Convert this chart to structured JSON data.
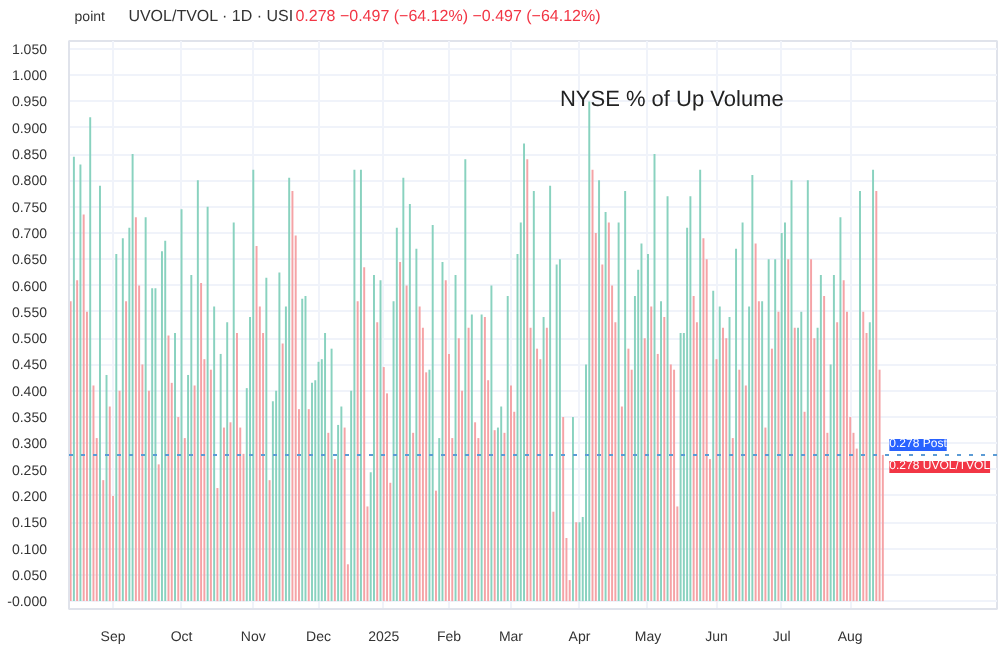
{
  "chart_data": {
    "type": "bar",
    "title": "NYSE % of Up Volume",
    "subtitle": "UVOL/TVOL · 1D · USI",
    "ylabel": "point",
    "annotations": [
      "0.278 −0.497 (−64.12%) −0.497 (−64.12%)",
      {
        "text": "0.278 Post",
        "y": 0.278
      },
      {
        "text": "0.278 UVOL/TVOL",
        "y": 0.278
      }
    ],
    "categories": [
      null,
      null,
      null,
      null,
      null,
      null,
      null,
      null,
      null,
      null,
      null,
      null,
      null,
      "Sep",
      null,
      null,
      null,
      null,
      null,
      null,
      null,
      null,
      null,
      null,
      null,
      null,
      null,
      null,
      null,
      null,
      null,
      null,
      null,
      null,
      "Oct",
      null,
      null,
      null,
      null,
      null,
      null,
      null,
      null,
      null,
      null,
      null,
      null,
      null,
      null,
      null,
      null,
      null,
      null,
      null,
      null,
      null,
      "Nov",
      null,
      null,
      null,
      null,
      null,
      null,
      null,
      null,
      null,
      null,
      null,
      null,
      null,
      null,
      null,
      null,
      null,
      null,
      null,
      "Dec",
      null,
      null,
      null,
      null,
      null,
      null,
      null,
      null,
      null,
      null,
      null,
      null,
      null,
      null,
      null,
      null,
      null,
      null,
      null,
      "2025",
      null,
      null,
      null,
      null,
      null,
      null,
      null,
      null,
      null,
      null,
      null,
      null,
      null,
      null,
      null,
      null,
      null,
      null,
      null,
      "Feb",
      null,
      null,
      null,
      null,
      null,
      null,
      null,
      null,
      null,
      null,
      null,
      null,
      null,
      null,
      null,
      null,
      null,
      null,
      "Mar",
      null,
      null,
      null,
      null,
      null,
      null,
      null,
      null,
      null,
      null,
      null,
      null,
      null,
      null,
      null,
      null,
      null,
      null,
      null,
      null,
      "Apr",
      null,
      null,
      null,
      null,
      null,
      null,
      null,
      null,
      null,
      null,
      null,
      null,
      null,
      null,
      null,
      null,
      null,
      null,
      null,
      null,
      "May",
      null,
      null,
      null,
      null,
      null,
      null,
      null,
      null,
      null,
      null,
      null,
      null,
      null,
      null,
      null,
      null,
      null,
      null,
      null,
      null,
      "Jun",
      null,
      null,
      null,
      null,
      null,
      null,
      null,
      null,
      null,
      null,
      null,
      null,
      null,
      null,
      null,
      null,
      null,
      null,
      null,
      "Jul",
      null,
      null,
      null,
      null,
      null,
      null,
      null,
      null,
      null,
      null,
      null,
      null,
      null,
      null,
      null,
      null,
      null,
      null,
      null,
      null,
      "Aug",
      null,
      null,
      null,
      null,
      null,
      null,
      null,
      null,
      null,
      null
    ],
    "values": [
      0.57,
      0.845,
      0.61,
      0.83,
      0.735,
      0.55,
      0.92,
      0.41,
      0.31,
      0.79,
      0.23,
      0.43,
      0.37,
      0.2,
      0.66,
      0.4,
      0.69,
      0.57,
      0.71,
      0.85,
      0.73,
      0.6,
      0.45,
      0.73,
      0.4,
      0.595,
      0.595,
      0.26,
      0.665,
      0.685,
      0.505,
      0.415,
      0.51,
      0.35,
      0.745,
      0.31,
      0.43,
      0.62,
      0.41,
      0.8,
      0.605,
      0.46,
      0.75,
      0.44,
      0.56,
      0.215,
      0.47,
      0.33,
      0.53,
      0.34,
      0.72,
      0.51,
      0.33,
      0.28,
      0.405,
      0.54,
      0.82,
      0.675,
      0.56,
      0.51,
      0.615,
      0.23,
      0.38,
      0.4,
      0.625,
      0.49,
      0.56,
      0.805,
      0.78,
      0.695,
      0.365,
      0.575,
      0.58,
      0.365,
      0.415,
      0.42,
      0.455,
      0.46,
      0.51,
      0.32,
      0.48,
      0.27,
      0.335,
      0.37,
      0.33,
      0.07,
      0.4,
      0.82,
      0.57,
      0.82,
      0.635,
      0.18,
      0.245,
      0.62,
      0.53,
      0.61,
      0.445,
      0.395,
      0.225,
      0.57,
      0.71,
      0.645,
      0.805,
      0.6,
      0.755,
      0.32,
      0.67,
      0.56,
      0.52,
      0.435,
      0.44,
      0.715,
      0.21,
      0.31,
      0.645,
      0.61,
      0.47,
      0.31,
      0.62,
      0.5,
      0.4,
      0.84,
      0.52,
      0.545,
      0.34,
      0.31,
      0.545,
      0.54,
      0.42,
      0.6,
      0.325,
      0.33,
      0.37,
      0.32,
      0.58,
      0.41,
      0.36,
      0.66,
      0.72,
      0.87,
      0.84,
      0.52,
      0.78,
      0.48,
      0.46,
      0.54,
      0.52,
      0.79,
      0.17,
      0.64,
      0.65,
      0.35,
      0.12,
      0.04,
      0.35,
      0.15,
      0.15,
      0.16,
      0.45,
      0.95,
      0.82,
      0.7,
      0.8,
      0.64,
      0.74,
      0.72,
      0.6,
      0.53,
      0.72,
      0.37,
      0.78,
      0.48,
      0.44,
      0.58,
      0.63,
      0.68,
      0.5,
      0.66,
      0.56,
      0.85,
      0.47,
      0.57,
      0.54,
      0.77,
      0.45,
      0.44,
      0.18,
      0.51,
      0.51,
      0.71,
      0.77,
      0.58,
      0.53,
      0.82,
      0.69,
      0.65,
      0.27,
      0.59,
      0.46,
      0.56,
      0.52,
      0.5,
      0.54,
      0.31,
      0.67,
      0.44,
      0.72,
      0.41,
      0.56,
      0.81,
      0.68,
      0.57,
      0.57,
      0.33,
      0.65,
      0.48,
      0.65,
      0.55,
      0.7,
      0.72,
      0.65,
      0.8,
      0.52,
      0.52,
      0.55,
      0.36,
      0.8,
      0.65,
      0.5,
      0.52,
      0.62,
      0.58,
      0.32,
      0.45,
      0.62,
      0.53,
      0.73,
      0.61,
      0.55,
      0.35,
      0.32,
      0.29,
      0.78,
      0.55,
      0.51,
      0.53,
      0.82,
      0.78,
      0.44,
      0.278
    ],
    "colors": [
      "#f5a3a6",
      "#89d2bf",
      "#f5a3a6",
      "#89d2bf",
      "#f5a3a6",
      "#f5a3a6",
      "#89d2bf",
      "#f5a3a6",
      "#f5a3a6",
      "#89d2bf",
      "#f5a3a6",
      "#89d2bf",
      "#f5a3a6",
      "#f5a3a6",
      "#89d2bf",
      "#f5a3a6",
      "#89d2bf",
      "#f5a3a6",
      "#89d2bf",
      "#89d2bf",
      "#f5a3a6",
      "#f5a3a6",
      "#f5a3a6",
      "#89d2bf",
      "#f5a3a6",
      "#89d2bf",
      "#89d2bf",
      "#f5a3a6",
      "#89d2bf",
      "#89d2bf",
      "#f5a3a6",
      "#f5a3a6",
      "#89d2bf",
      "#f5a3a6",
      "#89d2bf",
      "#f5a3a6",
      "#89d2bf",
      "#89d2bf",
      "#f5a3a6",
      "#89d2bf",
      "#f5a3a6",
      "#f5a3a6",
      "#89d2bf",
      "#f5a3a6",
      "#89d2bf",
      "#f5a3a6",
      "#89d2bf",
      "#f5a3a6",
      "#89d2bf",
      "#f5a3a6",
      "#89d2bf",
      "#f5a3a6",
      "#f5a3a6",
      "#f5a3a6",
      "#89d2bf",
      "#89d2bf",
      "#89d2bf",
      "#f5a3a6",
      "#f5a3a6",
      "#f5a3a6",
      "#89d2bf",
      "#f5a3a6",
      "#89d2bf",
      "#89d2bf",
      "#89d2bf",
      "#f5a3a6",
      "#89d2bf",
      "#89d2bf",
      "#f5a3a6",
      "#f5a3a6",
      "#f5a3a6",
      "#89d2bf",
      "#89d2bf",
      "#f5a3a6",
      "#89d2bf",
      "#89d2bf",
      "#89d2bf",
      "#89d2bf",
      "#89d2bf",
      "#f5a3a6",
      "#89d2bf",
      "#f5a3a6",
      "#89d2bf",
      "#89d2bf",
      "#f5a3a6",
      "#f5a3a6",
      "#89d2bf",
      "#89d2bf",
      "#f5a3a6",
      "#89d2bf",
      "#f5a3a6",
      "#f5a3a6",
      "#89d2bf",
      "#89d2bf",
      "#f5a3a6",
      "#89d2bf",
      "#f5a3a6",
      "#f5a3a6",
      "#f5a3a6",
      "#89d2bf",
      "#89d2bf",
      "#f5a3a6",
      "#89d2bf",
      "#f5a3a6",
      "#89d2bf",
      "#f5a3a6",
      "#89d2bf",
      "#f5a3a6",
      "#f5a3a6",
      "#f5a3a6",
      "#89d2bf",
      "#89d2bf",
      "#f5a3a6",
      "#89d2bf",
      "#89d2bf",
      "#f5a3a6",
      "#f5a3a6",
      "#f5a3a6",
      "#89d2bf",
      "#f5a3a6",
      "#f5a3a6",
      "#89d2bf",
      "#f5a3a6",
      "#89d2bf",
      "#f5a3a6",
      "#f5a3a6",
      "#89d2bf",
      "#f5a3a6",
      "#f5a3a6",
      "#89d2bf",
      "#f5a3a6",
      "#89d2bf",
      "#89d2bf",
      "#f5a3a6",
      "#89d2bf",
      "#f5a3a6",
      "#f5a3a6",
      "#89d2bf",
      "#89d2bf",
      "#89d2bf",
      "#f5a3a6",
      "#f5a3a6",
      "#89d2bf",
      "#f5a3a6",
      "#f5a3a6",
      "#89d2bf",
      "#f5a3a6",
      "#89d2bf",
      "#f5a3a6",
      "#89d2bf",
      "#89d2bf",
      "#f5a3a6",
      "#f5a3a6",
      "#f5a3a6",
      "#89d2bf",
      "#f5a3a6",
      "#89d2bf",
      "#89d2bf",
      "#89d2bf",
      "#89d2bf",
      "#f5a3a6",
      "#f5a3a6",
      "#89d2bf",
      "#f5a3a6",
      "#89d2bf",
      "#f5a3a6",
      "#f5a3a6",
      "#f5a3a6",
      "#89d2bf",
      "#f5a3a6",
      "#89d2bf",
      "#f5a3a6",
      "#f5a3a6",
      "#89d2bf",
      "#89d2bf",
      "#89d2bf",
      "#f5a3a6",
      "#89d2bf",
      "#f5a3a6",
      "#89d2bf",
      "#f5a3a6",
      "#89d2bf",
      "#f5a3a6",
      "#89d2bf",
      "#f5a3a6",
      "#f5a3a6",
      "#f5a3a6",
      "#89d2bf",
      "#89d2bf",
      "#89d2bf",
      "#89d2bf",
      "#f5a3a6",
      "#f5a3a6",
      "#89d2bf",
      "#f5a3a6",
      "#f5a3a6",
      "#f5a3a6",
      "#89d2bf",
      "#f5a3a6",
      "#89d2bf",
      "#f5a3a6",
      "#f5a3a6",
      "#89d2bf",
      "#f5a3a6",
      "#89d2bf",
      "#f5a3a6",
      "#89d2bf",
      "#f5a3a6",
      "#89d2bf",
      "#89d2bf",
      "#f5a3a6",
      "#f5a3a6",
      "#89d2bf",
      "#f5a3a6",
      "#89d2bf",
      "#f5a3a6",
      "#89d2bf",
      "#f5a3a6",
      "#89d2bf",
      "#89d2bf",
      "#f5a3a6",
      "#89d2bf",
      "#f5a3a6",
      "#89d2bf",
      "#89d2bf",
      "#f5a3a6",
      "#89d2bf",
      "#f5a3a6",
      "#f5a3a6",
      "#89d2bf",
      "#89d2bf",
      "#f5a3a6",
      "#f5a3a6",
      "#89d2bf",
      "#89d2bf",
      "#f5a3a6",
      "#89d2bf",
      "#f5a3a6",
      "#f5a3a6",
      "#f5a3a6",
      "#f5a3a6",
      "#f5a3a6",
      "#89d2bf",
      "#f5a3a6",
      "#f5a3a6",
      "#89d2bf",
      "#89d2bf",
      "#f5a3a6",
      "#f5a3a6",
      "#f5a3a6"
    ],
    "ylim": [
      -0.015,
      1.065
    ],
    "yticks": [
      {
        "value": 0,
        "label": "-0.000"
      },
      {
        "value": 0.05,
        "label": "0.050"
      },
      {
        "value": 0.1,
        "label": "0.100"
      },
      {
        "value": 0.15,
        "label": "0.150"
      },
      {
        "value": 0.2,
        "label": "0.200"
      },
      {
        "value": 0.25,
        "label": "0.250"
      },
      {
        "value": 0.3,
        "label": "0.300"
      },
      {
        "value": 0.35,
        "label": "0.350"
      },
      {
        "value": 0.4,
        "label": "0.400"
      },
      {
        "value": 0.45,
        "label": "0.450"
      },
      {
        "value": 0.5,
        "label": "0.500"
      },
      {
        "value": 0.55,
        "label": "0.550"
      },
      {
        "value": 0.6,
        "label": "0.600"
      },
      {
        "value": 0.65,
        "label": "0.650"
      },
      {
        "value": 0.7,
        "label": "0.700"
      },
      {
        "value": 0.75,
        "label": "0.750"
      },
      {
        "value": 0.8,
        "label": "0.800"
      },
      {
        "value": 0.85,
        "label": "0.850"
      },
      {
        "value": 0.9,
        "label": "0.900"
      },
      {
        "value": 0.95,
        "label": "0.950"
      },
      {
        "value": 1.0,
        "label": "1.000"
      },
      {
        "value": 1.05,
        "label": "1.050"
      }
    ],
    "ref_lines": [
      {
        "axis": "y",
        "value": 0.278,
        "color": "#5b9bd5",
        "line_style": "dotted"
      }
    ],
    "grid": true
  }
}
